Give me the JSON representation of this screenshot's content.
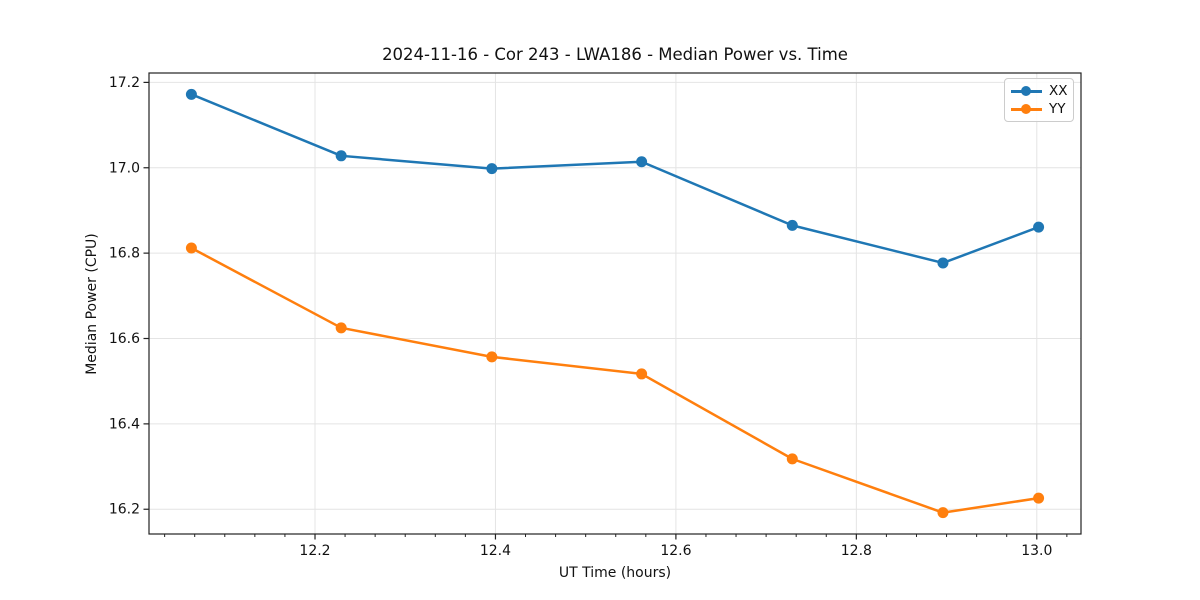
{
  "figure": {
    "background": "#ffffff",
    "text_color": "#111111",
    "spine_color": "#222222",
    "grid_color": "#e4e4e4"
  },
  "chart_data": {
    "type": "line",
    "title": "2024-11-16 - Cor 243 - LWA186 - Median Power vs. Time",
    "xlabel": "UT Time (hours)",
    "ylabel": "Median Power (CPU)",
    "x": [
      12.063,
      12.229,
      12.396,
      12.562,
      12.729,
      12.896,
      13.002
    ],
    "series": [
      {
        "name": "XX",
        "color": "#1f77b4",
        "values": [
          17.172,
          17.028,
          16.998,
          17.014,
          16.865,
          16.777,
          16.861
        ]
      },
      {
        "name": "YY",
        "color": "#ff7f0e",
        "values": [
          16.812,
          16.625,
          16.557,
          16.517,
          16.318,
          16.192,
          16.226
        ]
      }
    ],
    "xlim": [
      12.016,
      13.049
    ],
    "ylim": [
      16.142,
      17.222
    ],
    "xticks": [
      12.2,
      12.4,
      12.6,
      12.8,
      13.0
    ],
    "yticks": [
      16.2,
      16.4,
      16.6,
      16.8,
      17.0,
      17.2
    ],
    "x_tick_decimals": 1,
    "y_tick_decimals": 1,
    "x_minor_step": 0.0333333,
    "grid": true,
    "marker": "o",
    "marker_radius": 5.5,
    "line_width": 2.5,
    "legend": {
      "position": "upper right",
      "entries": [
        "XX",
        "YY"
      ]
    }
  }
}
